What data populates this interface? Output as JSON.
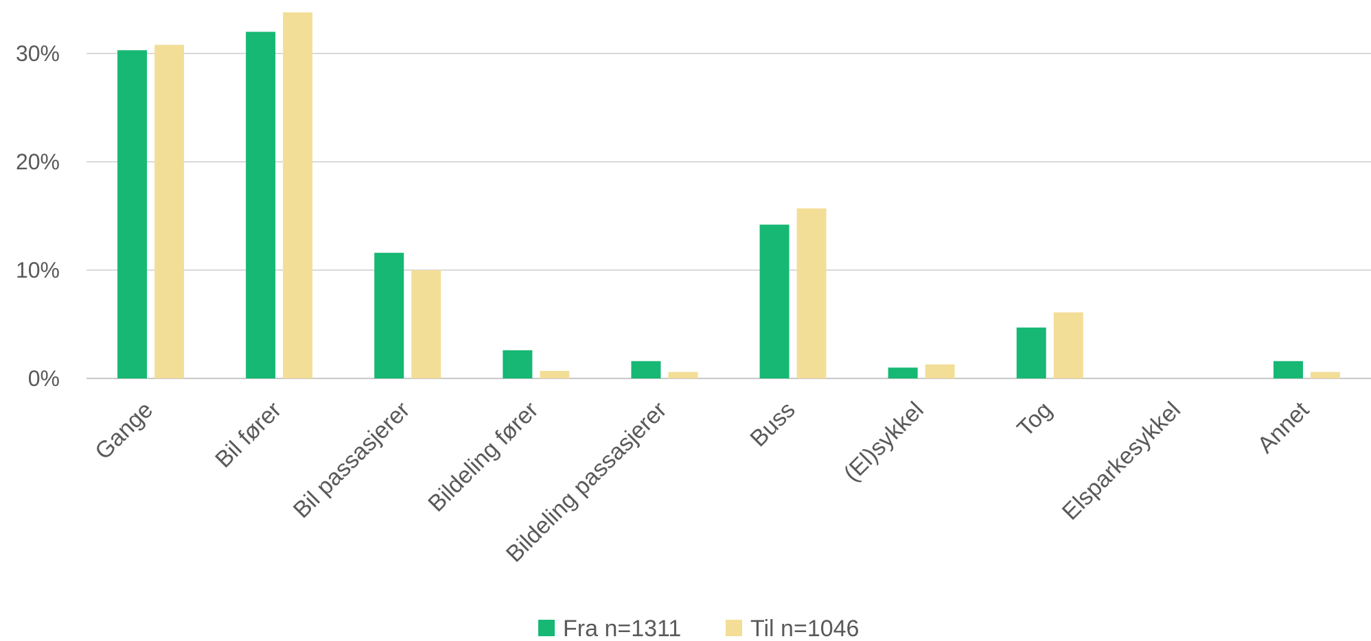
{
  "chart_data": {
    "type": "bar",
    "categories": [
      "Gange",
      "Bil fører",
      "Bil passasjerer",
      "Bildeling fører",
      "Bildeling passasjerer",
      "Buss",
      "(El)sykkel",
      "Tog",
      "Elsparkesykkel",
      "Annet"
    ],
    "series": [
      {
        "name": "Fra n=1311",
        "color": "#16b874",
        "values": [
          30.3,
          32.0,
          11.6,
          2.6,
          1.6,
          14.2,
          1.0,
          4.7,
          0,
          1.6
        ]
      },
      {
        "name": "Til n=1046",
        "color": "#f3de98",
        "values": [
          30.8,
          33.8,
          10.0,
          0.7,
          0.6,
          15.7,
          1.3,
          6.1,
          0,
          0.6
        ]
      }
    ],
    "y_ticks": [
      "0%",
      "10%",
      "20%",
      "30%"
    ],
    "ylim": [
      0,
      34
    ],
    "grid": true,
    "legend": "bottom-center",
    "title": "",
    "xlabel": "",
    "ylabel": ""
  }
}
